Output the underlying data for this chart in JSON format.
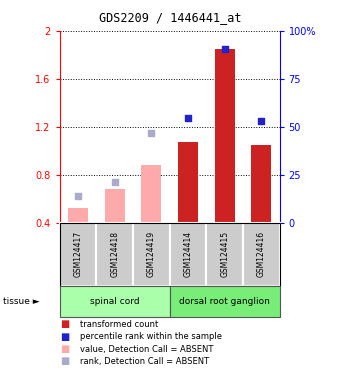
{
  "title": "GDS2209 / 1446441_at",
  "samples": [
    "GSM124417",
    "GSM124418",
    "GSM124419",
    "GSM124414",
    "GSM124415",
    "GSM124416"
  ],
  "bar_values": [
    null,
    null,
    null,
    1.07,
    1.85,
    1.05
  ],
  "bar_absent_values": [
    0.52,
    0.68,
    0.88,
    null,
    null,
    null
  ],
  "dot_values_present": [
    null,
    null,
    null,
    1.27,
    1.85,
    1.25
  ],
  "dot_absent_values": [
    0.62,
    0.74,
    1.15,
    null,
    null,
    null
  ],
  "ylim": [
    0.4,
    2.0
  ],
  "yticks_left": [
    0.4,
    0.8,
    1.2,
    1.6,
    2.0
  ],
  "ytick_labels_left": [
    "0.4",
    "0.8",
    "1.2",
    "1.6",
    "2"
  ],
  "yticks_right": [
    0,
    25,
    50,
    75,
    100
  ],
  "ytick_labels_right": [
    "0",
    "25",
    "50",
    "75",
    "100%"
  ],
  "bar_width": 0.55,
  "bar_color_present": "#cc2222",
  "bar_color_absent": "#ffaaaa",
  "dot_color_present": "#2222cc",
  "dot_color_absent": "#aaaacc",
  "tissue_green_spinal": "#aaffaa",
  "tissue_green_dorsal": "#77ee77",
  "bar_bottom": 0.4,
  "dot_size": 20,
  "legend_items": [
    {
      "color": "#cc2222",
      "label": "transformed count"
    },
    {
      "color": "#2222cc",
      "label": "percentile rank within the sample"
    },
    {
      "color": "#ffaaaa",
      "label": "value, Detection Call = ABSENT"
    },
    {
      "color": "#aaaacc",
      "label": "rank, Detection Call = ABSENT"
    }
  ]
}
